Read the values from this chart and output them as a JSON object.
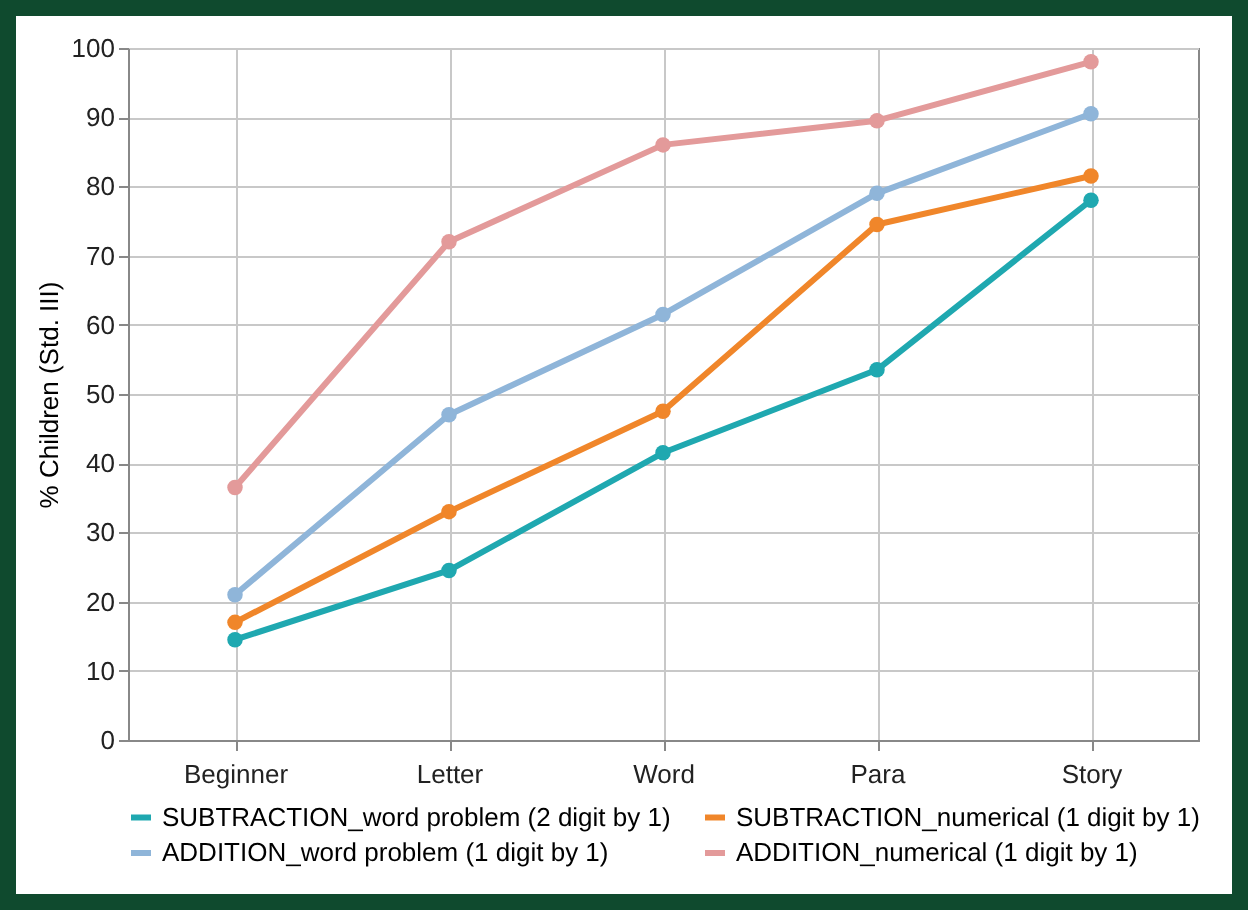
{
  "chart_data": {
    "type": "line",
    "ylabel": "% Children (Std. III)",
    "categories": [
      "Beginner",
      "Letter",
      "Word",
      "Para",
      "Story"
    ],
    "series": [
      {
        "name": "SUBTRACTION_word problem (2 digit by 1)",
        "color": "#1fa8b0",
        "values": [
          14.5,
          24.5,
          41.5,
          53.5,
          78
        ]
      },
      {
        "name": "SUBTRACTION_numerical (1 digit by 1)",
        "color": "#f0862a",
        "values": [
          17,
          33,
          47.5,
          74.5,
          81.5
        ]
      },
      {
        "name": "ADDITION_word problem (1 digit by 1)",
        "color": "#8fb5d9",
        "values": [
          21,
          47,
          61.5,
          79,
          90.5
        ]
      },
      {
        "name": "ADDITION_numerical (1 digit by 1)",
        "color": "#e39a9a",
        "values": [
          36.5,
          72,
          86,
          89.5,
          98
        ]
      }
    ],
    "ylim": [
      0,
      100
    ],
    "yticks": [
      0,
      10,
      20,
      30,
      40,
      50,
      60,
      70,
      80,
      90,
      100
    ],
    "grid": true,
    "legend": "bottom",
    "marker": "circle",
    "line_style": "solid"
  }
}
